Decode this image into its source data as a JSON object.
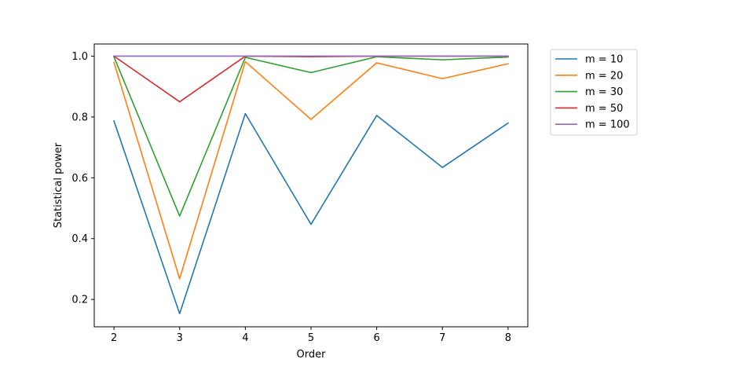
{
  "chart_data": {
    "type": "line",
    "title": "",
    "xlabel": "Order",
    "ylabel": "Statistical power",
    "x": [
      2,
      3,
      4,
      5,
      6,
      7,
      8
    ],
    "xticks": [
      "2",
      "3",
      "4",
      "5",
      "6",
      "7",
      "8"
    ],
    "yticks": [
      "0.2",
      "0.4",
      "0.6",
      "0.8",
      "1.0"
    ],
    "xlim": [
      1.7,
      8.3
    ],
    "ylim": [
      0.11,
      1.04
    ],
    "grid": false,
    "legend_position": "outside-top-right",
    "series": [
      {
        "name": "m = 10",
        "color": "#1f77b4",
        "values": [
          0.787,
          0.153,
          0.811,
          0.447,
          0.805,
          0.634,
          0.78
        ]
      },
      {
        "name": "m = 20",
        "color": "#ff7f0e",
        "values": [
          0.98,
          0.268,
          0.982,
          0.792,
          0.978,
          0.926,
          0.975
        ]
      },
      {
        "name": "m = 30",
        "color": "#2ca02c",
        "values": [
          0.998,
          0.474,
          0.996,
          0.946,
          0.998,
          0.988,
          0.997
        ]
      },
      {
        "name": "m = 50",
        "color": "#d62728",
        "values": [
          1.0,
          0.85,
          1.0,
          0.998,
          1.0,
          1.0,
          1.0
        ]
      },
      {
        "name": "m = 100",
        "color": "#9467bd",
        "values": [
          1.0,
          1.0,
          1.0,
          1.0,
          1.0,
          1.0,
          1.0
        ]
      }
    ]
  }
}
